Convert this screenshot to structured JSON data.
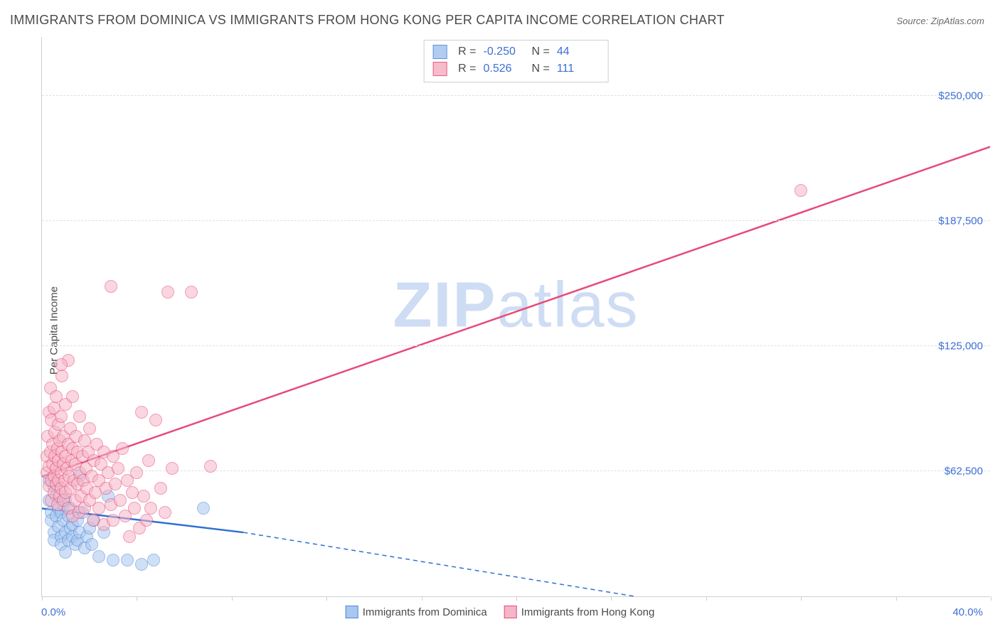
{
  "title": "IMMIGRANTS FROM DOMINICA VS IMMIGRANTS FROM HONG KONG PER CAPITA INCOME CORRELATION CHART",
  "source_prefix": "Source: ",
  "source_name": "ZipAtlas.com",
  "y_axis_label": "Per Capita Income",
  "watermark": {
    "part1": "ZIP",
    "part2": "atlas"
  },
  "chart": {
    "type": "scatter",
    "xlim": [
      0,
      40
    ],
    "ylim": [
      0,
      280000
    ],
    "x_min_label": "0.0%",
    "x_max_label": "40.0%",
    "y_ticks": [
      62500,
      125000,
      187500,
      250000
    ],
    "y_tick_labels": [
      "$62,500",
      "$125,000",
      "$187,500",
      "$250,000"
    ],
    "x_tick_positions": [
      0,
      4,
      8,
      12,
      16,
      20,
      24,
      28,
      32,
      36,
      40
    ],
    "background_color": "#ffffff",
    "grid_color": "#e0e0e0",
    "axis_color": "#d0d0d0",
    "label_color": "#3d6fd6",
    "marker_radius": 9,
    "marker_stroke_width": 1.5,
    "trend_line_width": 2.5
  },
  "series": [
    {
      "name": "Immigrants from Dominica",
      "fill_color": "#a9c7ef",
      "stroke_color": "#4f87d9",
      "fill_opacity": 0.55,
      "stats": {
        "R_label": "R =",
        "R": "-0.250",
        "N_label": "N =",
        "N": "44"
      },
      "trend": {
        "x1": 0,
        "y1": 44000,
        "x2": 8.5,
        "y2": 32000,
        "dashed_to_x": 25,
        "dashed_to_y": 0,
        "color": "#2f6fd4"
      },
      "points": [
        [
          0.3,
          58000
        ],
        [
          0.3,
          48000
        ],
        [
          0.4,
          42000
        ],
        [
          0.4,
          38000
        ],
        [
          0.5,
          55000
        ],
        [
          0.5,
          32000
        ],
        [
          0.5,
          28000
        ],
        [
          0.6,
          50000
        ],
        [
          0.6,
          40000
        ],
        [
          0.7,
          44000
        ],
        [
          0.7,
          35000
        ],
        [
          0.8,
          30000
        ],
        [
          0.8,
          42000
        ],
        [
          0.8,
          26000
        ],
        [
          0.9,
          46000
        ],
        [
          0.9,
          38000
        ],
        [
          1.0,
          32000
        ],
        [
          1.0,
          22000
        ],
        [
          1.0,
          48000
        ],
        [
          1.1,
          40000
        ],
        [
          1.1,
          28000
        ],
        [
          1.2,
          34000
        ],
        [
          1.2,
          44000
        ],
        [
          1.3,
          30000
        ],
        [
          1.3,
          36000
        ],
        [
          1.4,
          26000
        ],
        [
          1.5,
          38000
        ],
        [
          1.5,
          28000
        ],
        [
          1.6,
          32000
        ],
        [
          1.7,
          42000
        ],
        [
          1.8,
          24000
        ],
        [
          1.9,
          30000
        ],
        [
          2.0,
          34000
        ],
        [
          2.1,
          26000
        ],
        [
          2.2,
          38000
        ],
        [
          2.4,
          20000
        ],
        [
          2.6,
          32000
        ],
        [
          2.8,
          50000
        ],
        [
          3.0,
          18000
        ],
        [
          3.6,
          18000
        ],
        [
          4.2,
          16000
        ],
        [
          4.7,
          18000
        ],
        [
          6.8,
          44000
        ],
        [
          1.6,
          60000
        ]
      ]
    },
    {
      "name": "Immigrants from Hong Kong",
      "fill_color": "#f5b6c7",
      "stroke_color": "#e84a7a",
      "fill_opacity": 0.55,
      "stats": {
        "R_label": "R =",
        "R": "0.526",
        "N_label": "N =",
        "N": "111"
      },
      "trend": {
        "x1": 0,
        "y1": 60000,
        "x2": 40,
        "y2": 225000,
        "color": "#e84a7a"
      },
      "points": [
        [
          0.2,
          70000
        ],
        [
          0.2,
          62000
        ],
        [
          0.25,
          80000
        ],
        [
          0.3,
          55000
        ],
        [
          0.3,
          92000
        ],
        [
          0.3,
          65000
        ],
        [
          0.35,
          104000
        ],
        [
          0.35,
          72000
        ],
        [
          0.4,
          58000
        ],
        [
          0.4,
          88000
        ],
        [
          0.4,
          48000
        ],
        [
          0.45,
          66000
        ],
        [
          0.45,
          76000
        ],
        [
          0.5,
          52000
        ],
        [
          0.5,
          94000
        ],
        [
          0.5,
          60000
        ],
        [
          0.55,
          70000
        ],
        [
          0.55,
          82000
        ],
        [
          0.6,
          56000
        ],
        [
          0.6,
          100000
        ],
        [
          0.6,
          64000
        ],
        [
          0.65,
          74000
        ],
        [
          0.65,
          46000
        ],
        [
          0.7,
          86000
        ],
        [
          0.7,
          58000
        ],
        [
          0.7,
          68000
        ],
        [
          0.75,
          50000
        ],
        [
          0.75,
          78000
        ],
        [
          0.8,
          62000
        ],
        [
          0.8,
          90000
        ],
        [
          0.8,
          54000
        ],
        [
          0.85,
          72000
        ],
        [
          0.85,
          110000
        ],
        [
          0.9,
          66000
        ],
        [
          0.9,
          48000
        ],
        [
          0.9,
          80000
        ],
        [
          0.95,
          58000
        ],
        [
          1.0,
          70000
        ],
        [
          1.0,
          96000
        ],
        [
          1.0,
          52000
        ],
        [
          1.05,
          64000
        ],
        [
          1.1,
          76000
        ],
        [
          1.1,
          44000
        ],
        [
          1.1,
          118000
        ],
        [
          1.15,
          60000
        ],
        [
          1.2,
          84000
        ],
        [
          1.2,
          54000
        ],
        [
          1.25,
          68000
        ],
        [
          1.3,
          40000
        ],
        [
          1.3,
          74000
        ],
        [
          1.3,
          100000
        ],
        [
          1.35,
          58000
        ],
        [
          1.4,
          66000
        ],
        [
          1.4,
          48000
        ],
        [
          1.45,
          80000
        ],
        [
          1.5,
          56000
        ],
        [
          1.5,
          72000
        ],
        [
          1.55,
          42000
        ],
        [
          1.6,
          62000
        ],
        [
          1.6,
          90000
        ],
        [
          1.65,
          50000
        ],
        [
          1.7,
          70000
        ],
        [
          1.75,
          58000
        ],
        [
          1.8,
          78000
        ],
        [
          1.8,
          44000
        ],
        [
          1.85,
          64000
        ],
        [
          1.9,
          54000
        ],
        [
          1.95,
          72000
        ],
        [
          2.0,
          48000
        ],
        [
          2.0,
          84000
        ],
        [
          2.1,
          60000
        ],
        [
          2.15,
          38000
        ],
        [
          2.2,
          68000
        ],
        [
          2.25,
          52000
        ],
        [
          2.3,
          76000
        ],
        [
          2.4,
          58000
        ],
        [
          2.4,
          44000
        ],
        [
          2.5,
          66000
        ],
        [
          2.6,
          36000
        ],
        [
          2.6,
          72000
        ],
        [
          2.7,
          54000
        ],
        [
          2.8,
          62000
        ],
        [
          2.9,
          46000
        ],
        [
          3.0,
          70000
        ],
        [
          3.0,
          38000
        ],
        [
          3.1,
          56000
        ],
        [
          3.2,
          64000
        ],
        [
          3.3,
          48000
        ],
        [
          3.4,
          74000
        ],
        [
          3.5,
          40000
        ],
        [
          3.6,
          58000
        ],
        [
          3.7,
          30000
        ],
        [
          3.8,
          52000
        ],
        [
          3.9,
          44000
        ],
        [
          4.0,
          62000
        ],
        [
          4.1,
          34000
        ],
        [
          4.2,
          92000
        ],
        [
          4.3,
          50000
        ],
        [
          4.4,
          38000
        ],
        [
          4.5,
          68000
        ],
        [
          4.6,
          44000
        ],
        [
          4.8,
          88000
        ],
        [
          5.0,
          54000
        ],
        [
          5.2,
          42000
        ],
        [
          5.5,
          64000
        ],
        [
          0.8,
          116000
        ],
        [
          2.9,
          155000
        ],
        [
          5.3,
          152000
        ],
        [
          6.3,
          152000
        ],
        [
          7.1,
          65000
        ],
        [
          32.0,
          203000
        ]
      ]
    }
  ],
  "bottom_legend": [
    {
      "label": "Immigrants from Dominica",
      "series_index": 0
    },
    {
      "label": "Immigrants from Hong Kong",
      "series_index": 1
    }
  ]
}
